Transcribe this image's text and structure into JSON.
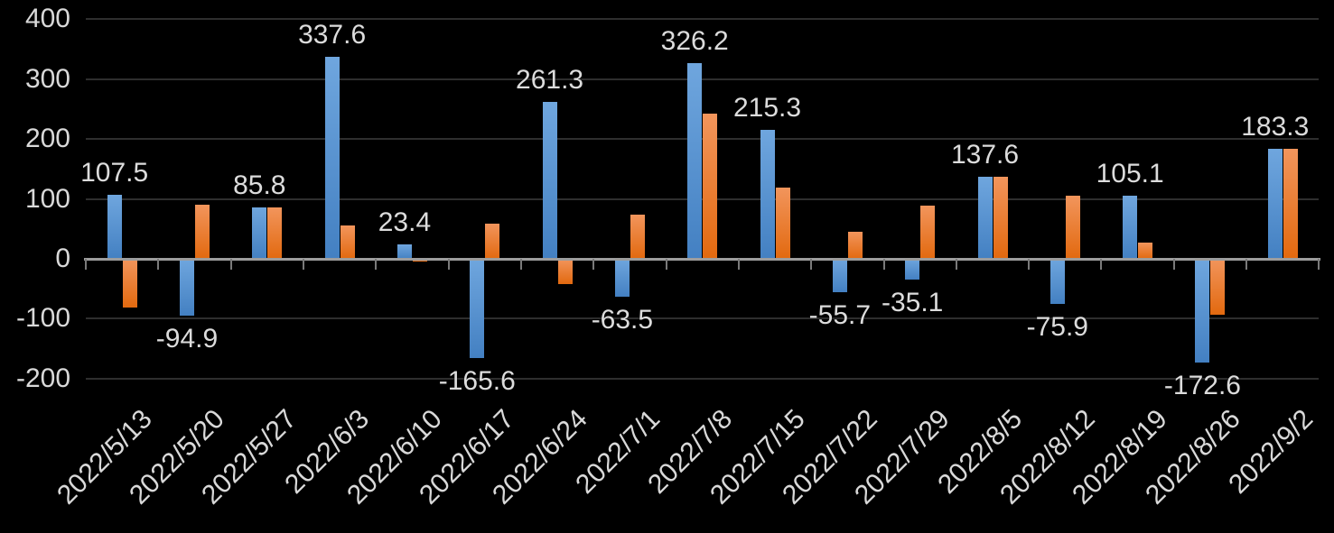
{
  "chart_data": {
    "type": "bar",
    "title": "",
    "categories": [
      "2022/5/13",
      "2022/5/20",
      "2022/5/27",
      "2022/6/3",
      "2022/6/10",
      "2022/6/17",
      "2022/6/24",
      "2022/7/1",
      "2022/7/8",
      "2022/7/15",
      "2022/7/22",
      "2022/7/29",
      "2022/8/5",
      "2022/8/12",
      "2022/8/19",
      "2022/8/26",
      "2022/9/2"
    ],
    "series": [
      {
        "name": "blue-series",
        "color_top": "#6fa6de",
        "color_bottom": "#4380c2",
        "values": [
          107.5,
          -94.9,
          85.8,
          337.6,
          23.4,
          -165.6,
          261.3,
          -63.5,
          326.2,
          215.3,
          -55.7,
          -35.1,
          137.6,
          -75.9,
          105.1,
          -172.6,
          183.3
        ],
        "labels_shown": true
      },
      {
        "name": "orange-series",
        "color_top": "#f2955c",
        "color_bottom": "#e2690f",
        "values": [
          -81,
          90,
          86,
          55,
          -5,
          58,
          -42,
          74,
          242,
          119,
          45,
          89,
          137,
          105,
          27,
          -94,
          183
        ],
        "labels_shown": false
      }
    ],
    "data_labels": [
      "107.5",
      "-94.9",
      "85.8",
      "337.6",
      "23.4",
      "-165.6",
      "261.3",
      "-63.5",
      "326.2",
      "215.3",
      "-55.7",
      "-35.1",
      "137.6",
      "-75.9",
      "105.1",
      "-172.6",
      "183.3"
    ],
    "y_axis": {
      "min": -200,
      "max": 400,
      "tick_values": [
        400,
        300,
        200,
        100,
        0,
        -100,
        -200
      ],
      "tick_labels": [
        "400",
        "300",
        "200",
        "100",
        "0",
        "-100",
        "-200"
      ]
    },
    "grid": true,
    "legend": "none",
    "x_label_rotation_deg": -45,
    "background_color": "#000000",
    "text_color": "#d9d9d9",
    "gridline_color": "#2e2e2e",
    "axis_line_color": "#9d9d9d"
  }
}
